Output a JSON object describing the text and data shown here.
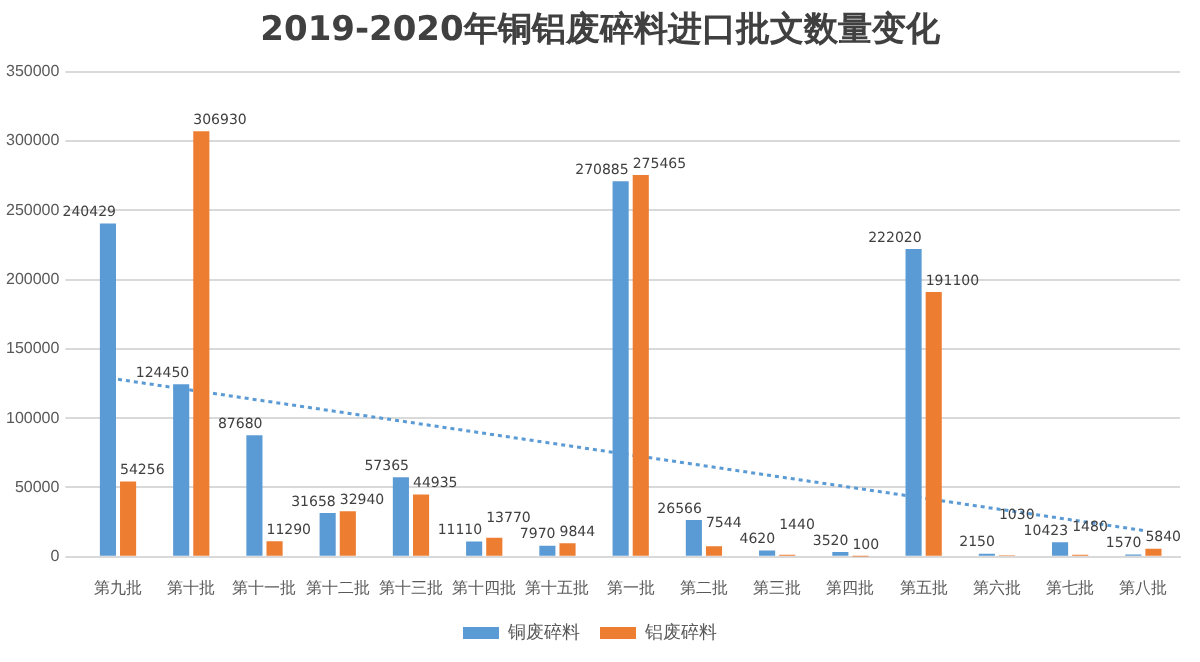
{
  "chart_data": {
    "type": "bar",
    "title": "2019-2020年铜铝废碎料进口批文数量变化",
    "categories": [
      "第九批",
      "第十批",
      "第十一批",
      "第十二批",
      "第十三批",
      "第十四批",
      "第十五批",
      "第一批",
      "第二批",
      "第三批",
      "第四批",
      "第五批",
      "第六批",
      "第七批",
      "第八批"
    ],
    "series": [
      {
        "name": "铜废碎料",
        "color": "#5b9bd5",
        "values": [
          240429,
          124450,
          87680,
          31658,
          57365,
          11110,
          7970,
          270885,
          26566,
          4620,
          3520,
          222020,
          2150,
          10423,
          1570
        ],
        "value_labels": [
          "240429",
          "124450",
          "87680",
          "31658",
          "57365",
          "11110",
          "7970",
          "270885",
          "26566",
          "4620",
          "3520",
          "222020",
          "2150",
          "10423",
          "1570"
        ]
      },
      {
        "name": "铝废碎料",
        "color": "#ed7d31",
        "values": [
          54256,
          306930,
          11290,
          32940,
          44935,
          13770,
          9844,
          275465,
          7544,
          1440,
          100,
          191100,
          1030,
          1480,
          5840
        ],
        "value_labels": [
          "54256",
          "306930",
          "11290",
          "32940",
          "44935",
          "13770",
          "9844",
          "275465",
          "7544",
          "1440",
          "100",
          "191100",
          "1030",
          "1480",
          "5840"
        ]
      },
      {
        "type": "line",
        "color": "#5b9bd5",
        "line_style": "dotted",
        "x": [
          "第九批",
          "第八批"
        ],
        "values": [
          128000,
          19000
        ]
      }
    ],
    "ylim": [
      0,
      350000
    ],
    "yticks": [
      0,
      50000,
      100000,
      150000,
      200000,
      250000,
      300000,
      350000
    ],
    "grid": "y",
    "legend": "bottom"
  }
}
